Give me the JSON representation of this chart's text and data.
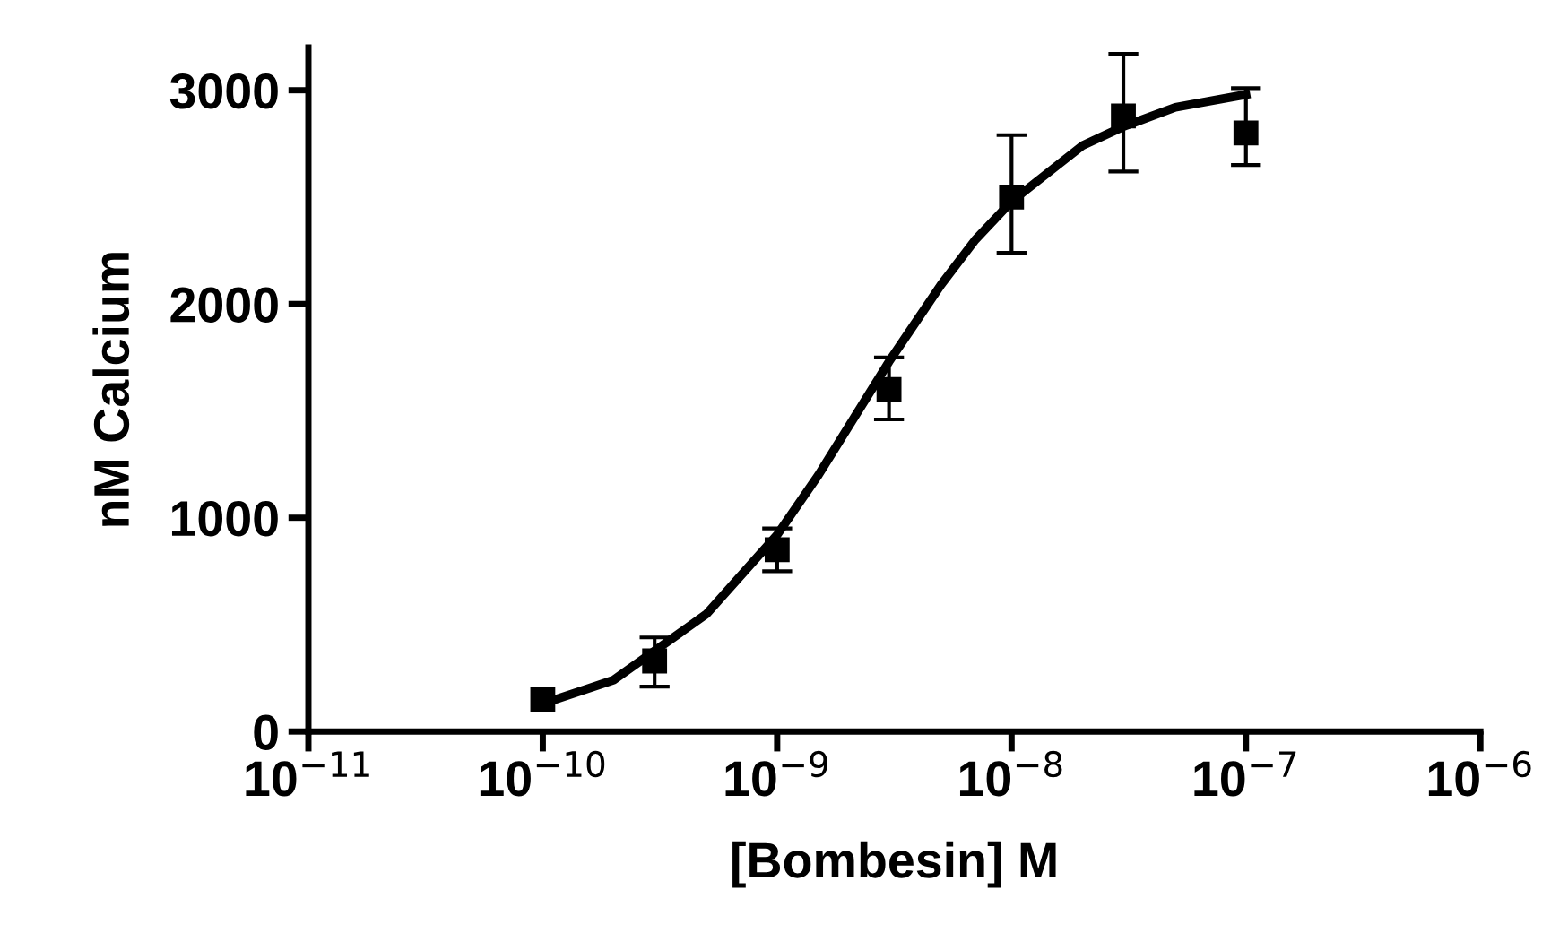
{
  "chart_data": {
    "type": "scatter",
    "xlabel": "[Bombesin] M",
    "ylabel": "nM Calcium",
    "log": "x",
    "xlim": [
      1e-11,
      1e-06
    ],
    "ylim": [
      0,
      3200
    ],
    "xticks": [
      {
        "value": 1e-11,
        "label": "10$^{−11}$"
      },
      {
        "value": 1e-10,
        "label": "10$^{−10}$"
      },
      {
        "value": 1e-09,
        "label": "10$^{−9}$"
      },
      {
        "value": 1e-08,
        "label": "10$^{−8}$"
      },
      {
        "value": 1e-07,
        "label": "10$^{−7}$"
      },
      {
        "value": 1e-06,
        "label": "10$^{−6}$"
      }
    ],
    "yticks": [
      0,
      1000,
      2000,
      3000
    ],
    "grid": false,
    "legend": false,
    "series": [
      {
        "marker": "square",
        "color": "#000000",
        "x": [
          1e-10,
          3e-10,
          1e-09,
          3e-09,
          1e-08,
          3e-08,
          1e-07
        ],
        "values": [
          150,
          330,
          850,
          1600,
          2500,
          2880,
          2800
        ],
        "errors": [
          null,
          [
            210,
            440
          ],
          [
            750,
            950
          ],
          [
            1460,
            1750
          ],
          [
            2240,
            2790
          ],
          [
            2620,
            3170
          ],
          [
            2650,
            3010
          ]
        ]
      },
      {
        "type": "line",
        "marker": "none",
        "line_style": "solid",
        "color": "#000000",
        "x": [
          1e-10,
          2e-10,
          5e-10,
          1e-09,
          1.5e-09,
          2e-09,
          3e-09,
          5e-09,
          7e-09,
          1e-08,
          2e-08,
          3e-08,
          5e-08,
          1e-07
        ],
        "values": [
          130,
          240,
          550,
          920,
          1200,
          1420,
          1730,
          2090,
          2300,
          2480,
          2740,
          2830,
          2920,
          2980
        ]
      }
    ]
  }
}
